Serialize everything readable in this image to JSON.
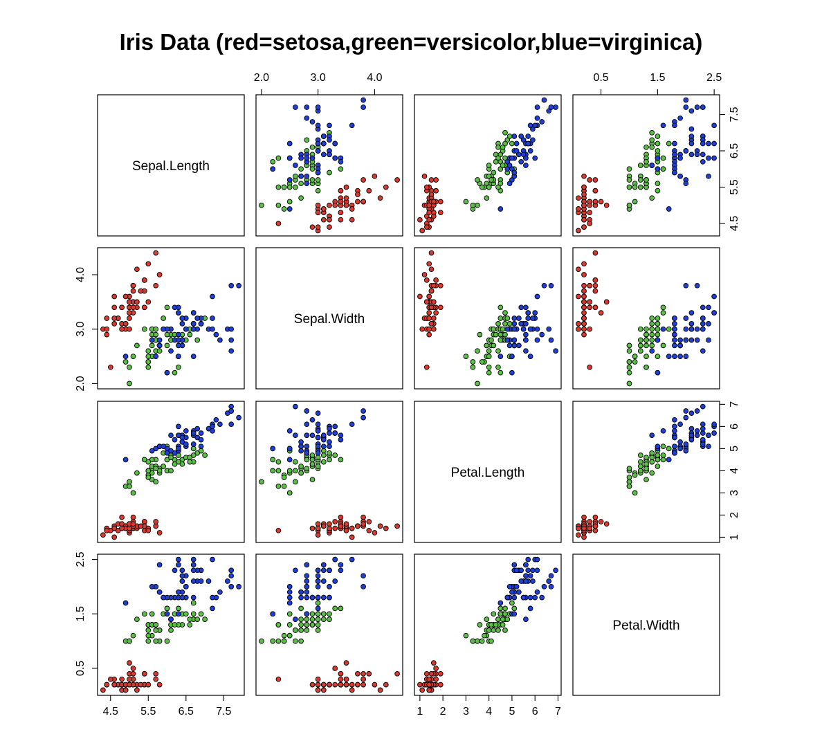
{
  "chart_data": {
    "type": "scatter",
    "layout": "scatterplot-matrix",
    "title": "Iris Data (red=setosa,green=versicolor,blue=virginica)",
    "variables": [
      "Sepal.Length",
      "Sepal.Width",
      "Petal.Length",
      "Petal.Width"
    ],
    "ranges": [
      [
        4.3,
        7.9
      ],
      [
        2.0,
        4.4
      ],
      [
        1.0,
        6.9
      ],
      [
        0.1,
        2.5
      ]
    ],
    "ticks": [
      [
        "4.5",
        "5.5",
        "6.5",
        "7.5"
      ],
      [
        "2.0",
        "3.0",
        "4.0"
      ],
      [
        "1",
        "2",
        "3",
        "4",
        "5",
        "6",
        "7"
      ],
      [
        "0.5",
        "1.5",
        "2.5"
      ]
    ],
    "species_colors": {
      "setosa": "#d93a2f",
      "versicolor": "#5bbf45",
      "virginica": "#1f3fd6"
    },
    "series": [
      {
        "species": "setosa",
        "values": [
          [
            5.1,
            3.5,
            1.4,
            0.2
          ],
          [
            4.9,
            3.0,
            1.4,
            0.2
          ],
          [
            4.7,
            3.2,
            1.3,
            0.2
          ],
          [
            4.6,
            3.1,
            1.5,
            0.2
          ],
          [
            5.0,
            3.6,
            1.4,
            0.2
          ],
          [
            5.4,
            3.9,
            1.7,
            0.4
          ],
          [
            4.6,
            3.4,
            1.4,
            0.3
          ],
          [
            5.0,
            3.4,
            1.5,
            0.2
          ],
          [
            4.4,
            2.9,
            1.4,
            0.2
          ],
          [
            4.9,
            3.1,
            1.5,
            0.1
          ],
          [
            5.4,
            3.7,
            1.5,
            0.2
          ],
          [
            4.8,
            3.4,
            1.6,
            0.2
          ],
          [
            4.8,
            3.0,
            1.4,
            0.1
          ],
          [
            4.3,
            3.0,
            1.1,
            0.1
          ],
          [
            5.8,
            4.0,
            1.2,
            0.2
          ],
          [
            5.7,
            4.4,
            1.5,
            0.4
          ],
          [
            5.4,
            3.9,
            1.3,
            0.4
          ],
          [
            5.1,
            3.5,
            1.4,
            0.3
          ],
          [
            5.7,
            3.8,
            1.7,
            0.3
          ],
          [
            5.1,
            3.8,
            1.5,
            0.3
          ],
          [
            5.4,
            3.4,
            1.7,
            0.2
          ],
          [
            5.1,
            3.7,
            1.5,
            0.4
          ],
          [
            4.6,
            3.6,
            1.0,
            0.2
          ],
          [
            5.1,
            3.3,
            1.7,
            0.5
          ],
          [
            4.8,
            3.4,
            1.9,
            0.2
          ],
          [
            5.0,
            3.0,
            1.6,
            0.2
          ],
          [
            5.0,
            3.4,
            1.6,
            0.4
          ],
          [
            5.2,
            3.5,
            1.5,
            0.2
          ],
          [
            5.2,
            3.4,
            1.4,
            0.2
          ],
          [
            4.7,
            3.2,
            1.6,
            0.2
          ],
          [
            4.8,
            3.1,
            1.6,
            0.2
          ],
          [
            5.4,
            3.4,
            1.5,
            0.4
          ],
          [
            5.2,
            4.1,
            1.5,
            0.1
          ],
          [
            5.5,
            4.2,
            1.4,
            0.2
          ],
          [
            4.9,
            3.1,
            1.5,
            0.2
          ],
          [
            5.0,
            3.2,
            1.2,
            0.2
          ],
          [
            5.5,
            3.5,
            1.3,
            0.2
          ],
          [
            4.9,
            3.6,
            1.4,
            0.1
          ],
          [
            4.4,
            3.0,
            1.3,
            0.2
          ],
          [
            5.1,
            3.4,
            1.5,
            0.2
          ],
          [
            5.0,
            3.5,
            1.3,
            0.3
          ],
          [
            4.5,
            2.3,
            1.3,
            0.3
          ],
          [
            4.4,
            3.2,
            1.3,
            0.2
          ],
          [
            5.0,
            3.5,
            1.6,
            0.6
          ],
          [
            5.1,
            3.8,
            1.9,
            0.4
          ],
          [
            4.8,
            3.0,
            1.4,
            0.3
          ],
          [
            5.1,
            3.8,
            1.6,
            0.2
          ],
          [
            4.6,
            3.2,
            1.4,
            0.2
          ],
          [
            5.3,
            3.7,
            1.5,
            0.2
          ],
          [
            5.0,
            3.3,
            1.4,
            0.2
          ]
        ]
      },
      {
        "species": "versicolor",
        "values": [
          [
            7.0,
            3.2,
            4.7,
            1.4
          ],
          [
            6.4,
            3.2,
            4.5,
            1.5
          ],
          [
            6.9,
            3.1,
            4.9,
            1.5
          ],
          [
            5.5,
            2.3,
            4.0,
            1.3
          ],
          [
            6.5,
            2.8,
            4.6,
            1.5
          ],
          [
            5.7,
            2.8,
            4.5,
            1.3
          ],
          [
            6.3,
            3.3,
            4.7,
            1.6
          ],
          [
            4.9,
            2.4,
            3.3,
            1.0
          ],
          [
            6.6,
            2.9,
            4.6,
            1.3
          ],
          [
            5.2,
            2.7,
            3.9,
            1.4
          ],
          [
            5.0,
            2.0,
            3.5,
            1.0
          ],
          [
            5.9,
            3.0,
            4.2,
            1.5
          ],
          [
            6.0,
            2.2,
            4.0,
            1.0
          ],
          [
            6.1,
            2.9,
            4.7,
            1.4
          ],
          [
            5.6,
            2.9,
            3.6,
            1.3
          ],
          [
            6.7,
            3.1,
            4.4,
            1.4
          ],
          [
            5.6,
            3.0,
            4.5,
            1.5
          ],
          [
            5.8,
            2.7,
            4.1,
            1.0
          ],
          [
            6.2,
            2.2,
            4.5,
            1.5
          ],
          [
            5.6,
            2.5,
            3.9,
            1.1
          ],
          [
            5.9,
            3.2,
            4.8,
            1.8
          ],
          [
            6.1,
            2.8,
            4.0,
            1.3
          ],
          [
            6.3,
            2.5,
            4.9,
            1.5
          ],
          [
            6.1,
            2.8,
            4.7,
            1.2
          ],
          [
            6.4,
            2.9,
            4.3,
            1.3
          ],
          [
            6.6,
            3.0,
            4.4,
            1.4
          ],
          [
            6.8,
            2.8,
            4.8,
            1.4
          ],
          [
            6.7,
            3.0,
            5.0,
            1.7
          ],
          [
            6.0,
            2.9,
            4.5,
            1.5
          ],
          [
            5.7,
            2.6,
            3.5,
            1.0
          ],
          [
            5.5,
            2.4,
            3.8,
            1.1
          ],
          [
            5.5,
            2.4,
            3.7,
            1.0
          ],
          [
            5.8,
            2.7,
            3.9,
            1.2
          ],
          [
            6.0,
            2.7,
            5.1,
            1.6
          ],
          [
            5.4,
            3.0,
            4.5,
            1.5
          ],
          [
            6.0,
            3.4,
            4.5,
            1.6
          ],
          [
            6.7,
            3.1,
            4.7,
            1.5
          ],
          [
            6.3,
            2.3,
            4.4,
            1.3
          ],
          [
            5.6,
            3.0,
            4.1,
            1.3
          ],
          [
            5.5,
            2.5,
            4.0,
            1.3
          ],
          [
            5.5,
            2.6,
            4.4,
            1.2
          ],
          [
            6.1,
            3.0,
            4.6,
            1.4
          ],
          [
            5.8,
            2.6,
            4.0,
            1.2
          ],
          [
            5.0,
            2.3,
            3.3,
            1.0
          ],
          [
            5.6,
            2.7,
            4.2,
            1.3
          ],
          [
            5.7,
            3.0,
            4.2,
            1.2
          ],
          [
            5.7,
            2.9,
            4.2,
            1.3
          ],
          [
            6.2,
            2.9,
            4.3,
            1.3
          ],
          [
            5.1,
            2.5,
            3.0,
            1.1
          ],
          [
            5.7,
            2.8,
            4.1,
            1.3
          ]
        ]
      },
      {
        "species": "virginica",
        "values": [
          [
            6.3,
            3.3,
            6.0,
            2.5
          ],
          [
            5.8,
            2.7,
            5.1,
            1.9
          ],
          [
            7.1,
            3.0,
            5.9,
            2.1
          ],
          [
            6.3,
            2.9,
            5.6,
            1.8
          ],
          [
            6.5,
            3.0,
            5.8,
            2.2
          ],
          [
            7.6,
            3.0,
            6.6,
            2.1
          ],
          [
            4.9,
            2.5,
            4.5,
            1.7
          ],
          [
            7.3,
            2.9,
            6.3,
            1.8
          ],
          [
            6.7,
            2.5,
            5.8,
            1.8
          ],
          [
            7.2,
            3.6,
            6.1,
            2.5
          ],
          [
            6.5,
            3.2,
            5.1,
            2.0
          ],
          [
            6.4,
            2.7,
            5.3,
            1.9
          ],
          [
            6.8,
            3.0,
            5.5,
            2.1
          ],
          [
            5.7,
            2.5,
            5.0,
            2.0
          ],
          [
            5.8,
            2.8,
            5.1,
            2.4
          ],
          [
            6.4,
            3.2,
            5.3,
            2.3
          ],
          [
            6.5,
            3.0,
            5.5,
            1.8
          ],
          [
            7.7,
            3.8,
            6.7,
            2.2
          ],
          [
            7.7,
            2.6,
            6.9,
            2.3
          ],
          [
            6.0,
            2.2,
            5.0,
            1.5
          ],
          [
            6.9,
            3.2,
            5.7,
            2.3
          ],
          [
            5.6,
            2.8,
            4.9,
            2.0
          ],
          [
            7.7,
            2.8,
            6.7,
            2.0
          ],
          [
            6.3,
            2.7,
            4.9,
            1.8
          ],
          [
            6.7,
            3.3,
            5.7,
            2.1
          ],
          [
            7.2,
            3.2,
            6.0,
            1.8
          ],
          [
            6.2,
            2.8,
            4.8,
            1.8
          ],
          [
            6.1,
            3.0,
            4.9,
            1.8
          ],
          [
            6.4,
            2.8,
            5.6,
            2.1
          ],
          [
            7.2,
            3.0,
            5.8,
            1.6
          ],
          [
            7.4,
            2.8,
            6.1,
            1.9
          ],
          [
            7.9,
            3.8,
            6.4,
            2.0
          ],
          [
            6.4,
            2.8,
            5.6,
            2.2
          ],
          [
            6.3,
            2.8,
            5.1,
            1.5
          ],
          [
            6.1,
            2.6,
            5.6,
            1.4
          ],
          [
            7.7,
            3.0,
            6.1,
            2.3
          ],
          [
            6.3,
            3.4,
            5.6,
            2.4
          ],
          [
            6.4,
            3.1,
            5.5,
            1.8
          ],
          [
            6.0,
            3.0,
            4.8,
            1.8
          ],
          [
            6.9,
            3.1,
            5.4,
            2.1
          ],
          [
            6.7,
            3.1,
            5.6,
            2.4
          ],
          [
            6.9,
            3.1,
            5.1,
            2.3
          ],
          [
            5.8,
            2.7,
            5.1,
            1.9
          ],
          [
            6.8,
            3.2,
            5.9,
            2.3
          ],
          [
            6.7,
            3.3,
            5.7,
            2.5
          ],
          [
            6.7,
            3.0,
            5.2,
            2.3
          ],
          [
            6.3,
            2.5,
            5.0,
            1.9
          ],
          [
            6.5,
            3.0,
            5.2,
            2.0
          ],
          [
            6.2,
            3.4,
            5.4,
            2.3
          ],
          [
            5.9,
            3.0,
            5.1,
            1.8
          ]
        ]
      }
    ],
    "grid": false,
    "legend": "none"
  }
}
